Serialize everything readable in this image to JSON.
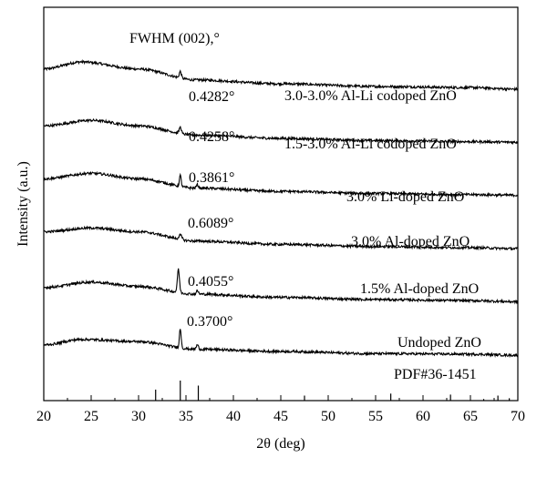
{
  "chart_data": {
    "type": "line",
    "title": "",
    "xlabel": "2θ (deg)",
    "ylabel": "Intensity (a.u.)",
    "xlim": [
      20,
      70
    ],
    "x_ticks": [
      20,
      25,
      30,
      35,
      40,
      45,
      50,
      55,
      60,
      65,
      70
    ],
    "y_ticks": [],
    "grid": false,
    "legend": "none",
    "fwhm_header": "FWHM (002),°",
    "series": [
      {
        "name": "3.0-3.0% Al-Li codoped ZnO",
        "fwhm": "0.4282°",
        "offset": 5,
        "peaks": [
          [
            34.4,
            0.12,
            0.35
          ]
        ],
        "shape": [
          [
            20,
            0.42
          ],
          [
            24,
            0.55
          ],
          [
            30,
            0.42
          ],
          [
            36,
            0.22
          ],
          [
            45,
            0.15
          ],
          [
            55,
            0.1
          ],
          [
            65,
            0.08
          ],
          [
            70,
            0.05
          ]
        ]
      },
      {
        "name": "1.5-3.0% Al-Li codoped ZnO",
        "fwhm": "0.4258°",
        "offset": 4,
        "peaks": [
          [
            34.4,
            0.12,
            0.35
          ]
        ],
        "shape": [
          [
            20,
            0.35
          ],
          [
            25,
            0.45
          ],
          [
            30,
            0.35
          ],
          [
            36,
            0.18
          ],
          [
            45,
            0.12
          ],
          [
            55,
            0.08
          ],
          [
            65,
            0.06
          ],
          [
            70,
            0.05
          ]
        ]
      },
      {
        "name": "3.0% Li-doped ZnO",
        "fwhm": "0.3861°",
        "offset": 3,
        "peaks": [
          [
            34.4,
            0.2,
            0.3
          ],
          [
            36.2,
            0.06,
            0.35
          ]
        ],
        "shape": [
          [
            20,
            0.35
          ],
          [
            25,
            0.45
          ],
          [
            30,
            0.35
          ],
          [
            36,
            0.18
          ],
          [
            45,
            0.12
          ],
          [
            55,
            0.08
          ],
          [
            65,
            0.06
          ],
          [
            70,
            0.05
          ]
        ]
      },
      {
        "name": "3.0% Al-doped ZnO",
        "fwhm": "0.6089°",
        "offset": 2,
        "peaks": [
          [
            34.4,
            0.08,
            0.5
          ]
        ],
        "shape": [
          [
            20,
            0.35
          ],
          [
            25,
            0.42
          ],
          [
            30,
            0.35
          ],
          [
            36,
            0.18
          ],
          [
            45,
            0.12
          ],
          [
            55,
            0.08
          ],
          [
            65,
            0.06
          ],
          [
            70,
            0.04
          ]
        ]
      },
      {
        "name": "1.5% Al-doped ZnO",
        "fwhm": "0.4055°",
        "offset": 1,
        "peaks": [
          [
            34.2,
            0.42,
            0.35
          ],
          [
            36.2,
            0.06,
            0.35
          ]
        ],
        "shape": [
          [
            20,
            0.3
          ],
          [
            25,
            0.4
          ],
          [
            30,
            0.32
          ],
          [
            36,
            0.18
          ],
          [
            45,
            0.12
          ],
          [
            55,
            0.08
          ],
          [
            65,
            0.06
          ],
          [
            70,
            0.04
          ]
        ]
      },
      {
        "name": "Undoped ZnO",
        "fwhm": "0.3700°",
        "offset": 0,
        "peaks": [
          [
            34.4,
            0.35,
            0.3
          ],
          [
            36.2,
            0.08,
            0.35
          ]
        ],
        "shape": [
          [
            20,
            0.22
          ],
          [
            24,
            0.32
          ],
          [
            30,
            0.28
          ],
          [
            36,
            0.14
          ],
          [
            45,
            0.1
          ],
          [
            55,
            0.06
          ],
          [
            65,
            0.05
          ],
          [
            70,
            0.03
          ]
        ]
      }
    ],
    "reference": {
      "label": "PDF#36-1451",
      "positions": [
        31.8,
        34.4,
        36.3,
        47.5,
        56.6,
        62.9,
        66.4,
        67.9,
        69.1
      ],
      "heights": [
        0.55,
        1.0,
        0.75,
        0.25,
        0.35,
        0.3,
        0.08,
        0.25,
        0.12
      ]
    }
  }
}
